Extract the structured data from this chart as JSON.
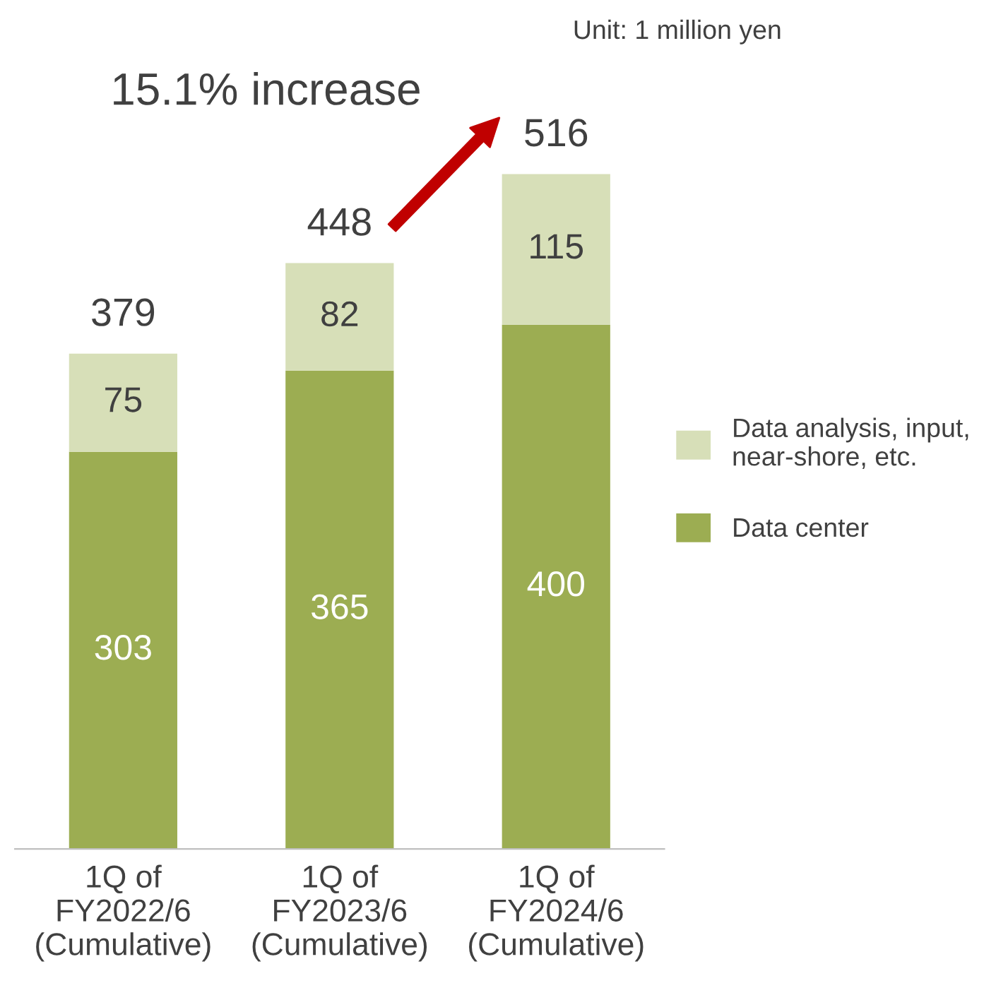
{
  "chart_data": {
    "type": "bar",
    "stacked": true,
    "categories": [
      "1Q of\nFY2022/6\n(Cumulative)",
      "1Q of\nFY2023/6\n(Cumulative)",
      "1Q of\nFY2024/6\n(Cumulative)"
    ],
    "series": [
      {
        "name": "Data center",
        "color": "#9cad52",
        "values": [
          303,
          365,
          400
        ]
      },
      {
        "name": "Data analysis, input,\nnear-shore, etc.",
        "color": "#d7dfb8",
        "values": [
          75,
          82,
          115
        ]
      }
    ],
    "data_labels": true,
    "totals": [
      "379",
      "448",
      "516"
    ],
    "legend": "right",
    "grid": false,
    "annotations": [
      "15.1% increase",
      "Unit: 1 million yen"
    ]
  }
}
